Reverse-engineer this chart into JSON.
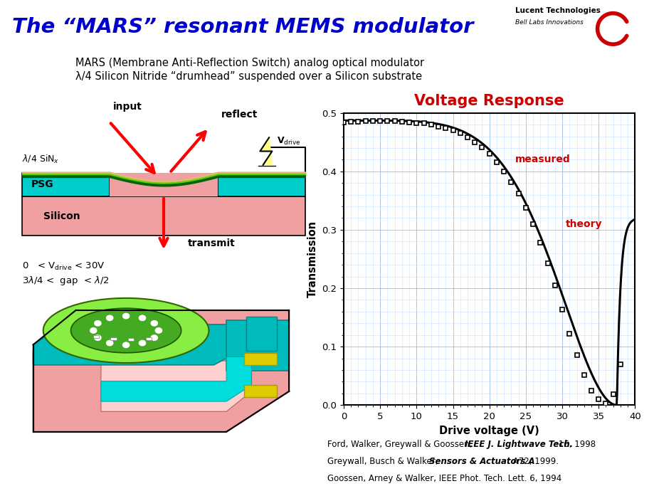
{
  "title": "The “MARS” resonant MEMS modulator",
  "title_color": "#0000CC",
  "subtitle_line1": "MARS (Membrane Anti-Reflection Switch) analog optical modulator",
  "subtitle_line2": "λ/4 Silicon Nitride “drumhead” suspended over a Silicon substrate",
  "graph_title": "Voltage Response",
  "graph_title_color": "#CC0000",
  "xlabel": "Drive voltage (V)",
  "ylabel": "Transmission",
  "xlim": [
    0,
    40
  ],
  "ylim": [
    0,
    0.5
  ],
  "xticks": [
    0,
    5,
    10,
    15,
    20,
    25,
    30,
    35,
    40
  ],
  "yticks": [
    0,
    0.1,
    0.2,
    0.3,
    0.4,
    0.5
  ],
  "bg_color": "#FFFFFF",
  "v_measured": [
    0,
    1,
    2,
    3,
    4,
    5,
    6,
    7,
    8,
    9,
    10,
    11,
    12,
    13,
    14,
    15,
    16,
    17,
    18,
    19,
    20,
    21,
    22,
    23,
    24,
    25,
    26,
    27,
    28,
    29,
    30,
    31,
    32,
    33,
    34,
    35,
    36,
    37,
    38
  ],
  "t_measured": [
    0.484,
    0.485,
    0.485,
    0.486,
    0.486,
    0.486,
    0.486,
    0.486,
    0.485,
    0.484,
    0.483,
    0.482,
    0.48,
    0.477,
    0.474,
    0.47,
    0.465,
    0.458,
    0.45,
    0.441,
    0.43,
    0.416,
    0.4,
    0.382,
    0.362,
    0.338,
    0.31,
    0.278,
    0.243,
    0.205,
    0.163,
    0.122,
    0.085,
    0.052,
    0.025,
    0.01,
    0.003,
    0.018,
    0.07
  ]
}
